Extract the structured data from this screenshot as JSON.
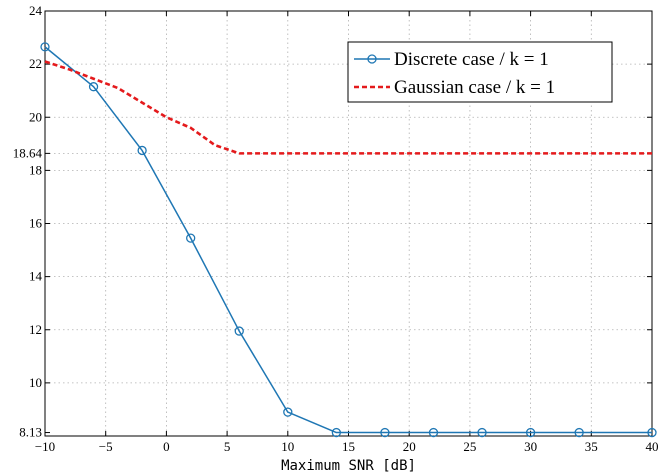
{
  "chart_data": {
    "type": "line",
    "xlabel": "Maximum SNR [dB]",
    "ylabel": "",
    "xlim": [
      -10,
      40
    ],
    "ylim": [
      8,
      24
    ],
    "grid": true,
    "legend_position": "top-right",
    "x_ticks": [
      -10,
      -5,
      0,
      5,
      10,
      15,
      20,
      25,
      30,
      35,
      40
    ],
    "x_tick_labels": [
      "−10",
      "−5",
      "0",
      "5",
      "10",
      "15",
      "20",
      "25",
      "30",
      "35",
      "40"
    ],
    "y_ticks": [
      8.13,
      10,
      12,
      14,
      16,
      18,
      18.64,
      20,
      22,
      24
    ],
    "y_tick_labels": [
      "8.13",
      "10",
      "12",
      "14",
      "16",
      "18",
      "18.64",
      "20",
      "22",
      "24"
    ],
    "series": [
      {
        "name": "Discrete case / k = 1",
        "color": "#1f77b4",
        "style": "solid",
        "marker": "circle",
        "x": [
          -10,
          -6,
          -2,
          2,
          6,
          10,
          14,
          18,
          22,
          26,
          30,
          34,
          40
        ],
        "y": [
          22.65,
          21.15,
          18.75,
          15.45,
          11.95,
          8.9,
          8.13,
          8.13,
          8.13,
          8.13,
          8.13,
          8.13,
          8.13
        ]
      },
      {
        "name": "Gaussian case / k = 1",
        "color": "#e41a1c",
        "style": "dashed",
        "marker": "none",
        "x": [
          -10,
          -8,
          -6,
          -4,
          -2,
          0,
          2,
          4,
          6,
          10,
          20,
          30,
          40
        ],
        "y": [
          22.1,
          21.8,
          21.45,
          21.1,
          20.55,
          20.0,
          19.6,
          18.95,
          18.64,
          18.64,
          18.64,
          18.64,
          18.64
        ]
      }
    ]
  }
}
